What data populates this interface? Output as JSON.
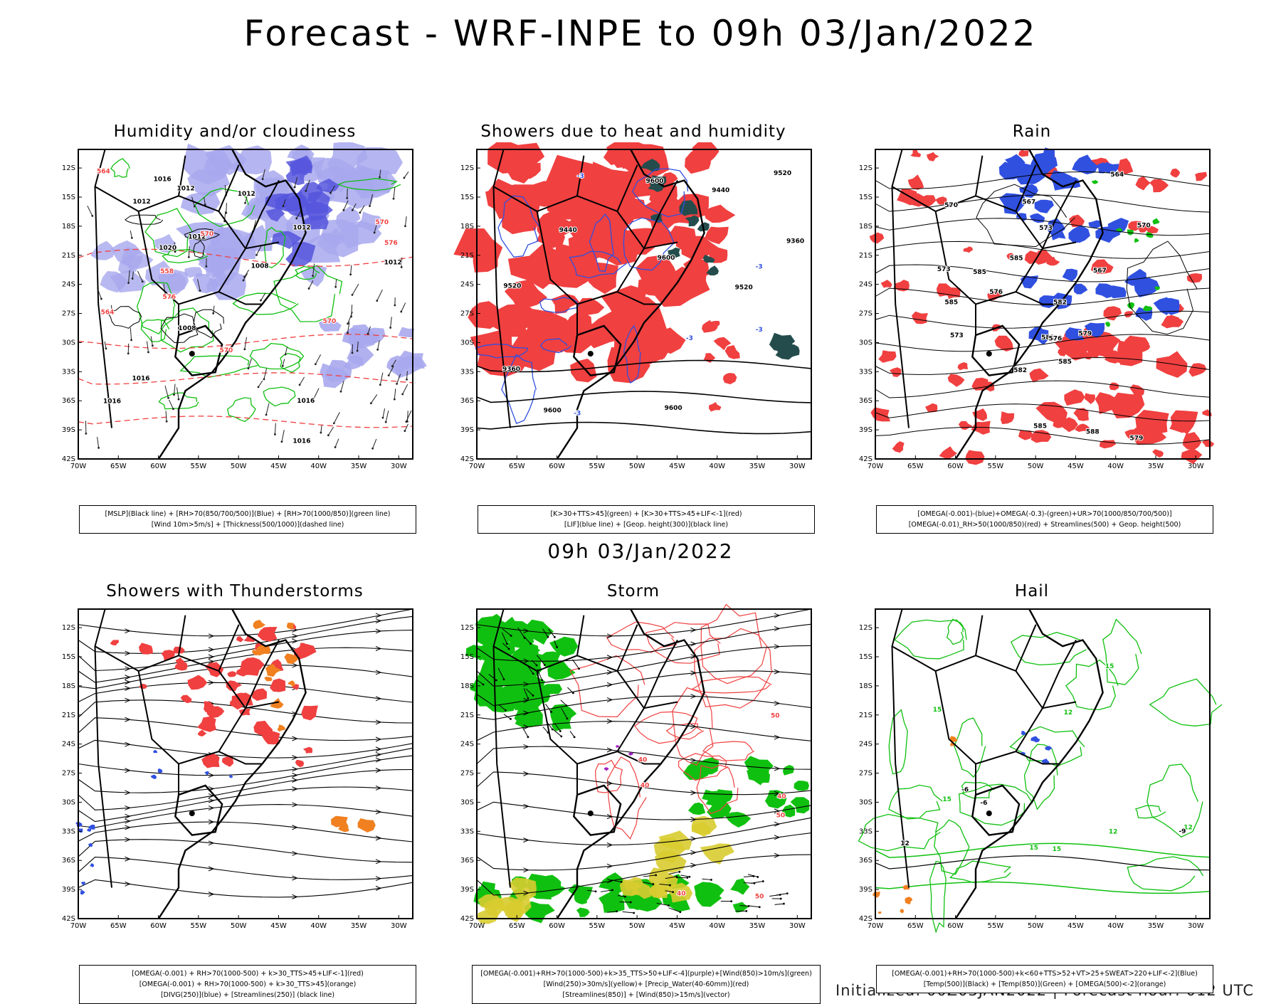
{
  "main_title": "Forecast - WRF-INPE to 09h 03/Jan/2022",
  "mid_title": "09h 03/Jan/2022",
  "footer": "Initialized: 00Z03JAN2022 | Forecast hour: 012 UTC",
  "lat_labels": [
    "12S",
    "15S",
    "18S",
    "21S",
    "24S",
    "27S",
    "30S",
    "33S",
    "36S",
    "39S",
    "42S"
  ],
  "lon_labels": [
    "70W",
    "65W",
    "60W",
    "55W",
    "50W",
    "45W",
    "40W",
    "35W",
    "30W"
  ],
  "colors": {
    "red": "#f04040",
    "blue": "#3050e0",
    "green": "#10c010",
    "lavender": "#a8a8ee",
    "darkteal": "#244c4c",
    "orange": "#f08020",
    "yellow": "#d8cc30",
    "purple": "#a020c0"
  },
  "panels": [
    {
      "title": "Humidity and/or cloudiness",
      "legend": [
        "[MSLP](Black line) + [RH>70(850/700/500)](Blue) + [RH>70(1000/850)](green line)",
        "[Wind 10m>5m/s] + [Thickness(500/1000)](dashed line)"
      ],
      "values": [
        "1012",
        "1016",
        "1008",
        "1012",
        "1016",
        "1012",
        "1008",
        "1012",
        "1016",
        "1020",
        "1012",
        "1016",
        "1012",
        "1016",
        "570",
        "576",
        "570",
        "564",
        "558",
        "570",
        "564",
        "576",
        "570"
      ]
    },
    {
      "title": "Showers due to heat and humidity",
      "legend": [
        "[K>30+TTS>45](green) + [K>30+TTS>45+LIF<-1](red)",
        "[LIF](blue line) + [Geop. height(300)](black line)"
      ],
      "values": [
        "9600",
        "9520",
        "9600",
        "9600",
        "9520",
        "9520",
        "9440",
        "9360",
        "9440",
        "9360",
        "9600",
        "-3",
        "-3",
        "-3",
        "-3",
        "-3"
      ]
    },
    {
      "title": "Rain",
      "legend": [
        "[OMEGA(-0.001)-(blue)+OMEGA(-0.3)-(green)+UR>70(1000/850/700/500)]",
        "[OMEGA(-0.01)_RH>50(1000/850)(red) + Streamlines(500) + Geop. height(500)"
      ],
      "values": [
        "585",
        "585",
        "585",
        "582",
        "585",
        "582",
        "582",
        "579",
        "579",
        "576",
        "576",
        "573",
        "573",
        "570",
        "567",
        "564",
        "567",
        "570",
        "573",
        "585",
        "588"
      ]
    },
    {
      "title": "Showers with Thunderstorms",
      "legend": [
        "[OMEGA(-0.001) + RH>70(1000-500) + k>30_TTS>45+LIF<-1](red)",
        "[OMEGA(-0.001) + RH>70(1000-500) + k>30_TTS>45](orange)",
        "[DIVG(250)](blue) + [Streamlines(250)] (black line)"
      ],
      "values": []
    },
    {
      "title": "Storm",
      "legend": [
        "[OMEGA(-0.001)+RH>70(1000-500)+k>35_TTS>50+LIF<-4](purple)+[Wind(850)>10m/s](green)",
        "[Wind(250)>30m/s](yellow)+ [Precip_Water(40-60mm)](red)",
        "[Streamlines(850)] + [Wind(850)>15m/s](vector)"
      ],
      "values": [
        "50",
        "40",
        "50",
        "40",
        "50",
        "40",
        "40"
      ]
    },
    {
      "title": "Hail",
      "legend": [
        "[OMEGA(-0.001)+RH>70(1000-500)+k<60+TTS>52+VT>25+SWEAT>220+LIF<-2](Blue)",
        "[Temp(500)](Black) + [Temp(850)](Green) + [OMEGA(500)<-2](orange)"
      ],
      "values": [
        "15",
        "15",
        "15",
        "12",
        "12",
        "15",
        "12",
        "15",
        "-9",
        "-6",
        "-6",
        "12"
      ]
    }
  ]
}
